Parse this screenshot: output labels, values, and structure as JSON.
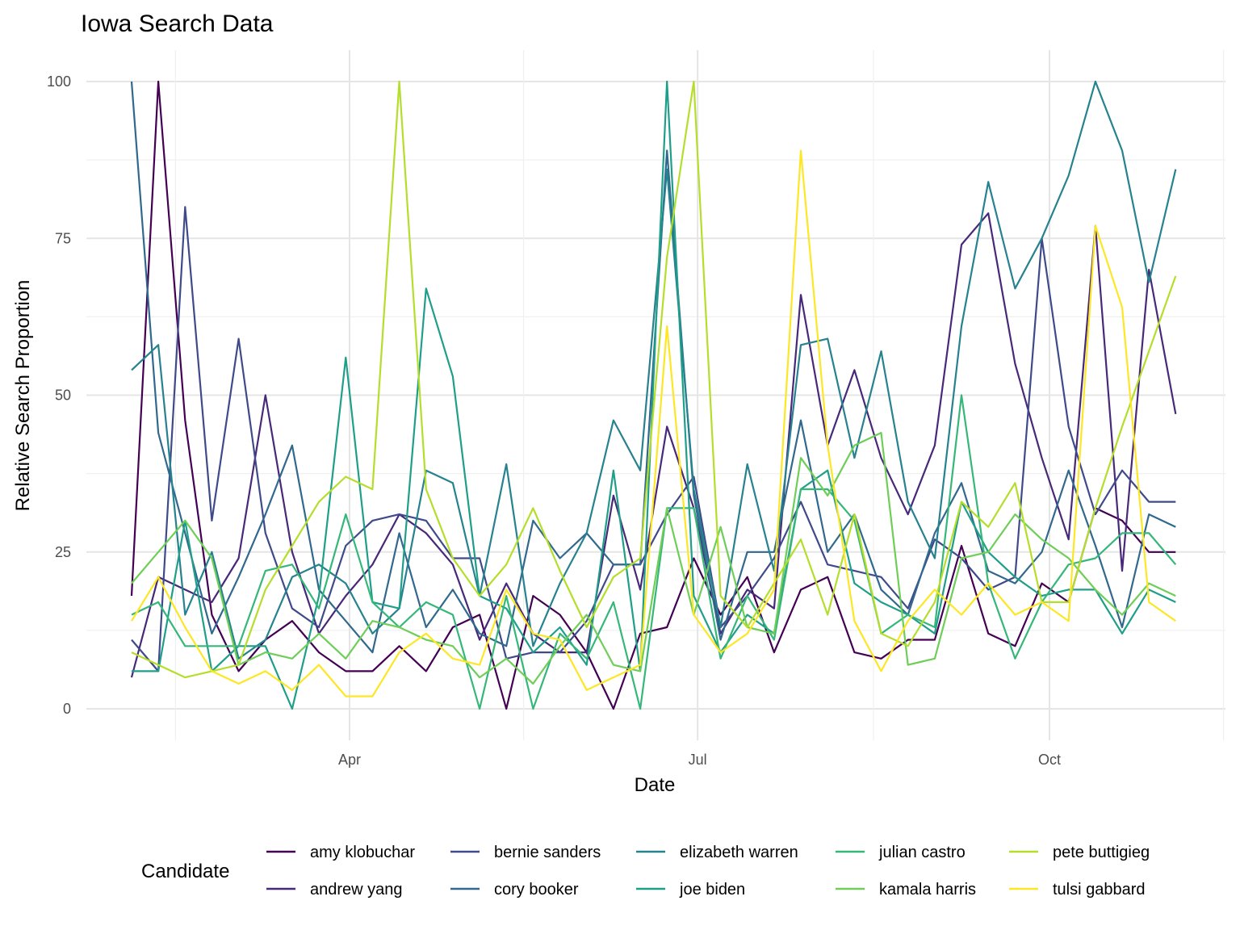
{
  "chart_data": {
    "type": "line",
    "title": "Iowa Search Data",
    "xlabel": "Date",
    "ylabel": "Relative Search Proportion",
    "legend_title": "Candidate",
    "legend_position": "bottom",
    "grid": true,
    "ylim": [
      0,
      100
    ],
    "y_ticks": [
      0,
      25,
      50,
      75,
      100
    ],
    "x_ticks": [
      {
        "date": "2019-04-01",
        "label": "Apr"
      },
      {
        "date": "2019-07-01",
        "label": "Jul"
      },
      {
        "date": "2019-10-01",
        "label": "Oct"
      }
    ],
    "x": [
      "2019-02-03",
      "2019-02-10",
      "2019-02-17",
      "2019-02-24",
      "2019-03-03",
      "2019-03-10",
      "2019-03-17",
      "2019-03-24",
      "2019-03-31",
      "2019-04-07",
      "2019-04-14",
      "2019-04-21",
      "2019-04-28",
      "2019-05-05",
      "2019-05-12",
      "2019-05-19",
      "2019-05-26",
      "2019-06-02",
      "2019-06-09",
      "2019-06-16",
      "2019-06-23",
      "2019-06-30",
      "2019-07-07",
      "2019-07-14",
      "2019-07-21",
      "2019-07-28",
      "2019-08-04",
      "2019-08-11",
      "2019-08-18",
      "2019-08-25",
      "2019-09-01",
      "2019-09-08",
      "2019-09-15",
      "2019-09-22",
      "2019-09-29",
      "2019-10-06",
      "2019-10-13",
      "2019-10-20",
      "2019-10-27",
      "2019-11-03"
    ],
    "series": [
      {
        "name": "amy klobuchar",
        "color": "#440154",
        "values": [
          18,
          100,
          46,
          15,
          6,
          11,
          14,
          9,
          6,
          6,
          10,
          6,
          13,
          15,
          0,
          18,
          15,
          9,
          0,
          12,
          13,
          24,
          15,
          21,
          9,
          19,
          21,
          9,
          8,
          11,
          11,
          26,
          12,
          10,
          20,
          17,
          32,
          30,
          25,
          25
        ]
      },
      {
        "name": "andrew yang",
        "color": "#482878",
        "values": [
          5,
          21,
          19,
          17,
          24,
          50,
          25,
          12,
          18,
          23,
          31,
          28,
          23,
          11,
          20,
          12,
          9,
          9,
          34,
          19,
          45,
          32,
          12,
          19,
          16,
          66,
          42,
          54,
          40,
          31,
          42,
          74,
          79,
          55,
          40,
          27,
          77,
          22,
          70,
          47
        ]
      },
      {
        "name": "bernie sanders",
        "color": "#3e4a89",
        "values": [
          11,
          6,
          80,
          30,
          59,
          28,
          16,
          13,
          26,
          30,
          31,
          30,
          24,
          24,
          8,
          9,
          9,
          14,
          23,
          23,
          31,
          37,
          13,
          18,
          24,
          33,
          23,
          22,
          21,
          16,
          27,
          24,
          19,
          21,
          75,
          45,
          31,
          38,
          33,
          33
        ]
      },
      {
        "name": "cory booker",
        "color": "#31688e",
        "values": [
          100,
          44,
          28,
          12,
          21,
          31,
          42,
          19,
          14,
          9,
          28,
          13,
          19,
          12,
          10,
          30,
          24,
          28,
          23,
          23,
          89,
          34,
          11,
          25,
          25,
          46,
          25,
          31,
          19,
          15,
          28,
          36,
          22,
          20,
          25,
          38,
          26,
          13,
          31,
          29
        ]
      },
      {
        "name": "elizabeth warren",
        "color": "#26828e",
        "values": [
          54,
          58,
          15,
          25,
          8,
          11,
          21,
          23,
          20,
          12,
          16,
          38,
          36,
          18,
          39,
          10,
          20,
          28,
          46,
          38,
          86,
          35,
          13,
          39,
          22,
          58,
          59,
          40,
          57,
          33,
          24,
          61,
          84,
          67,
          75,
          85,
          100,
          89,
          68,
          86
        ]
      },
      {
        "name": "joe biden",
        "color": "#1f9e89",
        "values": [
          6,
          6,
          30,
          6,
          10,
          10,
          0,
          18,
          56,
          17,
          16,
          67,
          53,
          18,
          16,
          9,
          13,
          7,
          38,
          6,
          100,
          18,
          9,
          15,
          12,
          35,
          38,
          20,
          17,
          15,
          12,
          33,
          25,
          21,
          18,
          19,
          19,
          12,
          19,
          17
        ]
      },
      {
        "name": "julian castro",
        "color": "#35b779",
        "values": [
          15,
          17,
          10,
          10,
          10,
          22,
          23,
          16,
          31,
          17,
          13,
          17,
          15,
          0,
          18,
          0,
          12,
          8,
          17,
          0,
          32,
          32,
          8,
          18,
          11,
          35,
          35,
          30,
          12,
          15,
          13,
          50,
          20,
          8,
          17,
          23,
          24,
          28,
          28,
          23
        ]
      },
      {
        "name": "kamala harris",
        "color": "#6ece58",
        "values": [
          20,
          25,
          30,
          24,
          7,
          9,
          8,
          12,
          8,
          14,
          13,
          11,
          10,
          5,
          8,
          4,
          10,
          15,
          7,
          6,
          32,
          15,
          29,
          13,
          12,
          40,
          34,
          42,
          44,
          7,
          8,
          24,
          25,
          31,
          27,
          24,
          19,
          15,
          20,
          18
        ]
      },
      {
        "name": "pete buttigieg",
        "color": "#b5de2b",
        "values": [
          9,
          7,
          5,
          6,
          7,
          19,
          26,
          33,
          37,
          35,
          100,
          35,
          24,
          18,
          23,
          32,
          22,
          13,
          21,
          24,
          72,
          100,
          18,
          13,
          20,
          27,
          15,
          31,
          12,
          10,
          17,
          33,
          29,
          36,
          17,
          17,
          32,
          45,
          57,
          69
        ]
      },
      {
        "name": "tulsi gabbard",
        "color": "#fde725",
        "values": [
          14,
          21,
          13,
          6,
          4,
          6,
          3,
          7,
          2,
          2,
          9,
          12,
          8,
          7,
          19,
          12,
          11,
          3,
          5,
          7,
          61,
          15,
          9,
          12,
          19,
          89,
          42,
          14,
          6,
          14,
          19,
          15,
          20,
          15,
          17,
          14,
          77,
          64,
          17,
          14
        ]
      }
    ]
  }
}
